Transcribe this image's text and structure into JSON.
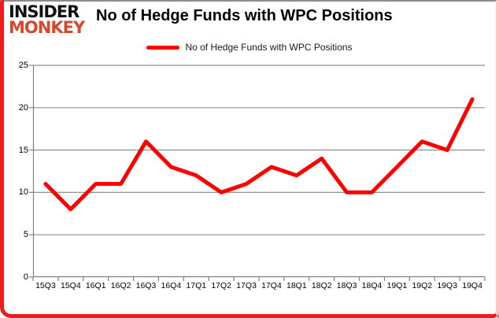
{
  "logo": {
    "line1": "INSIDER",
    "line2": "MONKEY"
  },
  "header": {
    "title": "No of Hedge Funds with WPC Positions"
  },
  "legend": {
    "label": "No of Hedge Funds with WPC Positions"
  },
  "colors": {
    "series_line": "#fe0000",
    "logo_red": "#d9472b",
    "logo_black": "#111111",
    "grid_line": "#8f8f8f",
    "axis_line": "#808080",
    "frame_red": "#ee1c1c",
    "frame_gray": "#8c8c8c",
    "text": "#000000"
  },
  "chart_data": {
    "type": "line",
    "title": "No of Hedge Funds with WPC Positions",
    "categories": [
      "15Q3",
      "15Q4",
      "16Q1",
      "16Q2",
      "16Q3",
      "16Q4",
      "17Q1",
      "17Q2",
      "17Q3",
      "17Q4",
      "18Q1",
      "18Q2",
      "18Q3",
      "18Q4",
      "19Q1",
      "19Q2",
      "19Q3",
      "19Q4"
    ],
    "series": [
      {
        "name": "No of Hedge Funds with WPC Positions",
        "values": [
          11,
          8,
          11,
          11,
          16,
          13,
          12,
          10,
          11,
          13,
          12,
          14,
          10,
          10,
          13,
          16,
          15,
          21
        ]
      }
    ],
    "xlabel": "",
    "ylabel": "",
    "ylim": [
      0,
      25
    ],
    "y_ticks": [
      0,
      5,
      10,
      15,
      20,
      25
    ],
    "grid": "horizontal",
    "legend_position": "top-center"
  }
}
